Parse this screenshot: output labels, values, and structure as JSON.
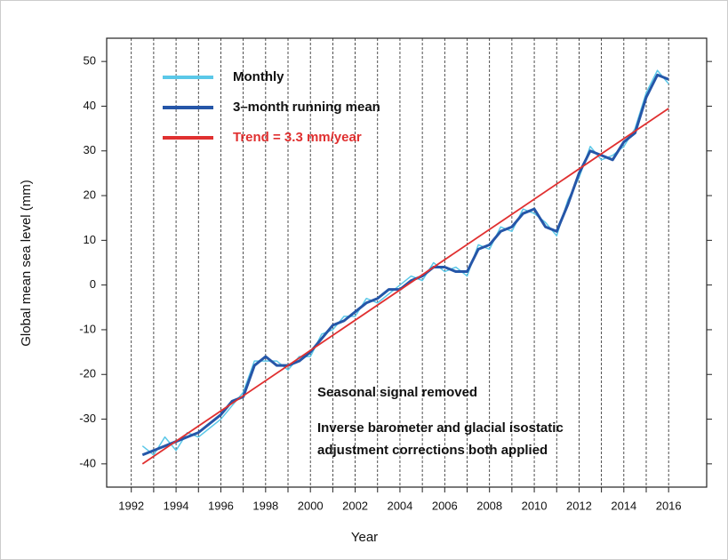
{
  "chart_data": {
    "type": "line",
    "xlabel": "Year",
    "ylabel": "Global mean sea level (mm)",
    "x": [
      1992.5,
      1993,
      1993.5,
      1994,
      1994.5,
      1995,
      1995.5,
      1996,
      1996.5,
      1997,
      1997.5,
      1998,
      1998.5,
      1999,
      1999.5,
      2000,
      2000.5,
      2001,
      2001.5,
      2002,
      2002.5,
      2003,
      2003.5,
      2004,
      2004.5,
      2005,
      2005.5,
      2006,
      2006.5,
      2007,
      2007.5,
      2008,
      2008.5,
      2009,
      2009.5,
      2010,
      2010.5,
      2011,
      2011.5,
      2012,
      2012.5,
      2013,
      2013.5,
      2014,
      2014.5,
      2015,
      2015.5,
      2016
    ],
    "series": [
      {
        "name": "Monthly",
        "color": "#5bc8e8",
        "width": 1.5,
        "values": [
          -36,
          -38,
          -34,
          -37,
          -33,
          -34,
          -32,
          -30,
          -27,
          -24,
          -17,
          -17,
          -17,
          -19,
          -16,
          -16,
          -11,
          -10,
          -7,
          -7,
          -3,
          -4,
          -2,
          0,
          2,
          1,
          5,
          3,
          4,
          2,
          9,
          8,
          13,
          12,
          17,
          16,
          14,
          11,
          19,
          24,
          31,
          28,
          29,
          31,
          35,
          43,
          48,
          45
        ]
      },
      {
        "name": "3–month running mean",
        "color": "#2556a8",
        "width": 3,
        "values": [
          -38,
          -37,
          -36,
          -35,
          -34,
          -33,
          -31,
          -29,
          -26,
          -25,
          -18,
          -16,
          -18,
          -18,
          -17,
          -15,
          -12,
          -9,
          -8,
          -6,
          -4,
          -3,
          -1,
          -1,
          1,
          2,
          4,
          4,
          3,
          3,
          8,
          9,
          12,
          13,
          16,
          17,
          13,
          12,
          18,
          25,
          30,
          29,
          28,
          32,
          34,
          42,
          47,
          46
        ]
      },
      {
        "name": "Trend = 3.3 mm/year",
        "color": "#e03030",
        "width": 1.8,
        "x": [
          1992.5,
          2016
        ],
        "values": [
          -40,
          39.5
        ]
      }
    ],
    "annotations": [
      "Seasonal signal removed",
      "Inverse barometer and glacial isostatic",
      "adjustment corrections both applied"
    ],
    "xlim": [
      1990.9,
      2017.7
    ],
    "ylim": [
      -45.2,
      55.2
    ],
    "xticks": [
      1992,
      1994,
      1996,
      1998,
      2000,
      2002,
      2004,
      2006,
      2008,
      2010,
      2012,
      2014,
      2016
    ],
    "xminorticks": [
      1993,
      1995,
      1997,
      1999,
      2001,
      2003,
      2005,
      2007,
      2009,
      2011,
      2013,
      2015
    ],
    "yticks": [
      -40,
      -30,
      -20,
      -10,
      0,
      10,
      20,
      30,
      40,
      50
    ],
    "grid": "x-dashed",
    "legend": "upper-left"
  }
}
